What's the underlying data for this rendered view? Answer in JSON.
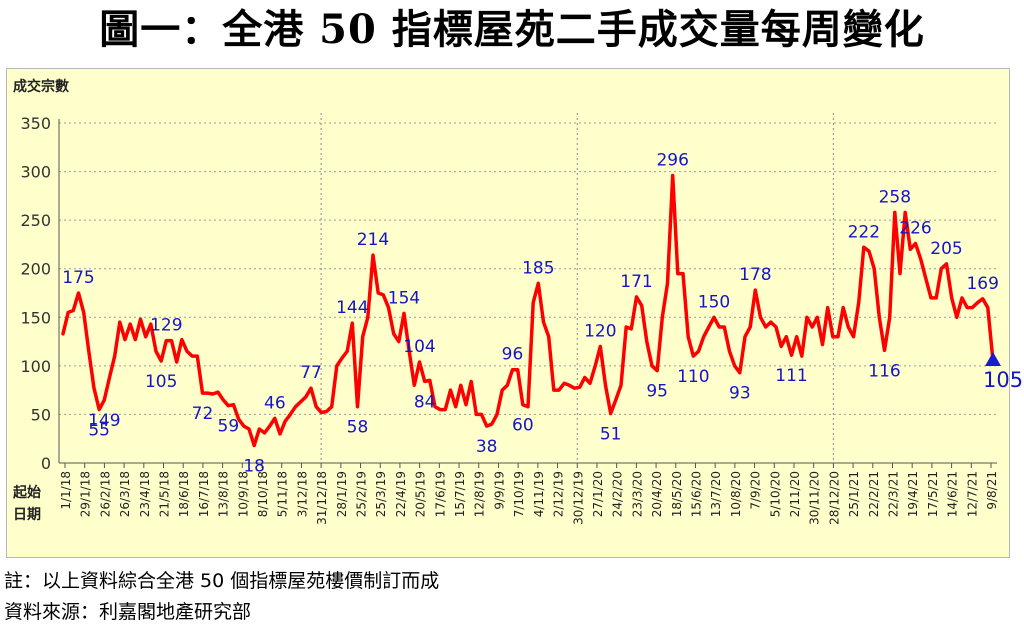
{
  "title": "圖一：全港 50 指標屋苑二手成交量每周變化",
  "footnote": "註：以上資料綜合全港 50 個指標屋苑樓價制訂而成",
  "source": "資料來源：利嘉閣地產研究部",
  "colors": {
    "line": "#ff0000",
    "label": "#1515c8",
    "background": "#ffffcc",
    "grid": "#9c9c9c",
    "marker": "#1a1ad0"
  },
  "chart_data": {
    "type": "line",
    "title": "圖一：全港 50 指標屋苑二手成交量每周變化",
    "ylabel": "成交宗數",
    "xlabel": "起始日期",
    "xlabel_lines": [
      "起始",
      "日期"
    ],
    "ylim": [
      0,
      350
    ],
    "yticks": [
      0,
      50,
      100,
      150,
      200,
      250,
      300,
      350
    ],
    "grid": "horizontal-dashed",
    "year_dividers": [
      "31/12/18",
      "30/12/19",
      "28/12/20"
    ],
    "tick_labels": [
      "1/1/18",
      "29/1/18",
      "26/2/18",
      "26/3/18",
      "23/4/18",
      "21/5/18",
      "18/6/18",
      "16/7/18",
      "13/8/18",
      "10/9/18",
      "8/10/18",
      "5/11/18",
      "3/12/18",
      "31/12/18",
      "28/1/19",
      "25/2/19",
      "25/3/19",
      "22/4/19",
      "20/5/19",
      "17/6/19",
      "15/7/19",
      "12/8/19",
      "9/9/19",
      "7/10/19",
      "4/11/19",
      "2/12/19",
      "30/12/19",
      "27/1/20",
      "24/2/20",
      "23/3/20",
      "20/4/20",
      "18/5/20",
      "15/6/20",
      "13/7/20",
      "10/8/20",
      "7/9/20",
      "5/10/20",
      "2/11/20",
      "30/11/20",
      "28/12/20",
      "25/1/21",
      "22/2/21",
      "22/3/21",
      "19/4/21",
      "17/5/21",
      "14/6/21",
      "12/7/21",
      "9/8/21"
    ],
    "series": [
      {
        "values": [
          133,
          155,
          157,
          175,
          155,
          115,
          77,
          55,
          65,
          88,
          110,
          145,
          127,
          143,
          127,
          148,
          130,
          143,
          115,
          105,
          126,
          126,
          104,
          127,
          115,
          110,
          110,
          72,
          72,
          71,
          73,
          65,
          59,
          60,
          45,
          38,
          35,
          18,
          35,
          31,
          38,
          46,
          30,
          43,
          50,
          58,
          63,
          68,
          77,
          58,
          52,
          53,
          58,
          100,
          108,
          115,
          144,
          58,
          130,
          150,
          214,
          175,
          173,
          160,
          133,
          125,
          154,
          115,
          80,
          104,
          84,
          85,
          58,
          55,
          55,
          75,
          58,
          80,
          60,
          84,
          50,
          50,
          38,
          40,
          50,
          75,
          80,
          96,
          96,
          60,
          58,
          165,
          185,
          145,
          130,
          75,
          75,
          82,
          80,
          77,
          78,
          88,
          82,
          100,
          120,
          80,
          51,
          65,
          80,
          140,
          138,
          171,
          162,
          125,
          100,
          95,
          150,
          185,
          296,
          195,
          195,
          130,
          110,
          115,
          130,
          140,
          150,
          140,
          140,
          115,
          100,
          93,
          130,
          140,
          178,
          150,
          140,
          145,
          140,
          120,
          130,
          111,
          130,
          110,
          150,
          140,
          150,
          122,
          160,
          130,
          130,
          160,
          140,
          130,
          165,
          222,
          218,
          200,
          150,
          116,
          150,
          258,
          195,
          258,
          220,
          226,
          210,
          190,
          170,
          170,
          200,
          205,
          170,
          150,
          170,
          160,
          160,
          165,
          169,
          160,
          105
        ]
      }
    ],
    "annotations": [
      {
        "text": "175",
        "value": 175
      },
      {
        "text": "55",
        "value": 55
      },
      {
        "text": "149",
        "value": 149
      },
      {
        "text": "105",
        "value": 105
      },
      {
        "text": "129",
        "value": 129
      },
      {
        "text": "72",
        "value": 72
      },
      {
        "text": "59",
        "value": 59
      },
      {
        "text": "18",
        "value": 18
      },
      {
        "text": "46",
        "value": 46
      },
      {
        "text": "77",
        "value": 77
      },
      {
        "text": "144",
        "value": 144
      },
      {
        "text": "58",
        "value": 58
      },
      {
        "text": "214",
        "value": 214
      },
      {
        "text": "154",
        "value": 154
      },
      {
        "text": "104",
        "value": 104
      },
      {
        "text": "84",
        "value": 84
      },
      {
        "text": "38",
        "value": 38
      },
      {
        "text": "96",
        "value": 96
      },
      {
        "text": "60",
        "value": 60
      },
      {
        "text": "185",
        "value": 185
      },
      {
        "text": "120",
        "value": 120
      },
      {
        "text": "51",
        "value": 51
      },
      {
        "text": "171",
        "value": 171
      },
      {
        "text": "95",
        "value": 95
      },
      {
        "text": "296",
        "value": 296
      },
      {
        "text": "110",
        "value": 110
      },
      {
        "text": "150",
        "value": 150
      },
      {
        "text": "93",
        "value": 93
      },
      {
        "text": "178",
        "value": 178
      },
      {
        "text": "111",
        "value": 111
      },
      {
        "text": "222",
        "value": 222
      },
      {
        "text": "116",
        "value": 116
      },
      {
        "text": "258",
        "value": 258
      },
      {
        "text": "226",
        "value": 226
      },
      {
        "text": "205",
        "value": 205
      },
      {
        "text": "169",
        "value": 169
      },
      {
        "text": "105",
        "value": 105,
        "latest": true
      }
    ]
  }
}
